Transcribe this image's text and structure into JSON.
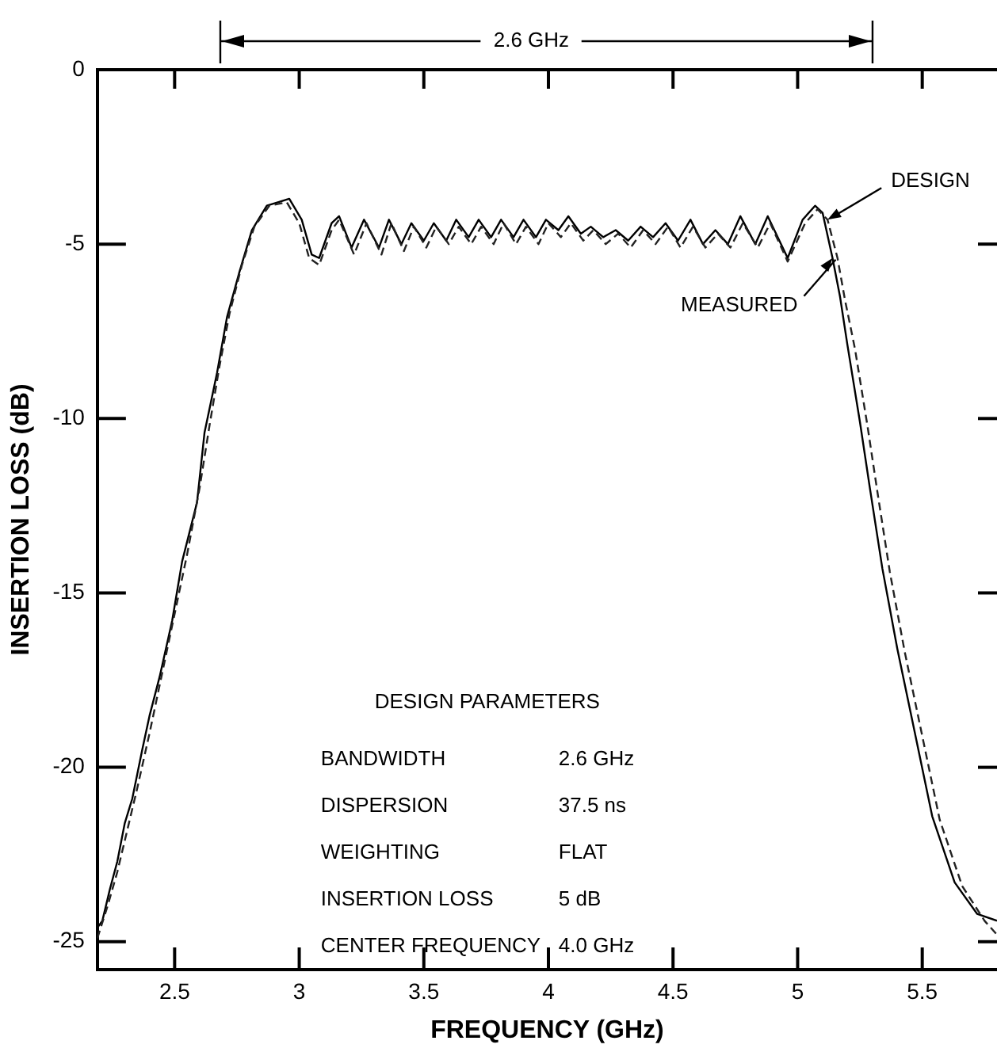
{
  "chart_data": {
    "type": "line",
    "xlabel": "FREQUENCY (GHz)",
    "ylabel": "INSERTION LOSS (dB)",
    "xlim": [
      2.19,
      5.8
    ],
    "xticks": [
      2.5,
      3.0,
      3.5,
      4.0,
      4.5,
      5.0,
      5.5
    ],
    "ylim": [
      -25.8,
      0
    ],
    "yticks": [
      0,
      -5,
      -10,
      -15,
      -20,
      -25
    ],
    "grid": false,
    "legend": false,
    "marker": "none",
    "annotations": [
      "2.6 GHz",
      "DESIGN PARAMETERS",
      "BANDWIDTH",
      "2.6 GHz",
      "DISPERSION",
      "37.5 ns",
      "WEIGHTING",
      "FLAT",
      "INSERTION LOSS",
      "5 dB",
      "CENTER FREQUENCY",
      "4.0 GHz"
    ],
    "series": [
      {
        "name": "DESIGN",
        "color": "#222222",
        "line_style": "dashed",
        "x": [
          2.19,
          2.23,
          2.27,
          2.31,
          2.35,
          2.4,
          2.45,
          2.5,
          2.55,
          2.6,
          2.64,
          2.68,
          2.72,
          2.77,
          2.82,
          2.88,
          2.95,
          3.0,
          3.04,
          3.08,
          3.13,
          3.16,
          3.22,
          3.27,
          3.33,
          3.37,
          3.42,
          3.46,
          3.51,
          3.55,
          3.6,
          3.64,
          3.69,
          3.73,
          3.78,
          3.82,
          3.87,
          3.91,
          3.96,
          4.0,
          4.05,
          4.09,
          4.14,
          4.18,
          4.23,
          4.28,
          4.33,
          4.38,
          4.43,
          4.48,
          4.53,
          4.58,
          4.63,
          4.68,
          4.73,
          4.78,
          4.84,
          4.89,
          4.96,
          5.03,
          5.08,
          5.12,
          5.16,
          5.19,
          5.23,
          5.28,
          5.32,
          5.37,
          5.43,
          5.5,
          5.57,
          5.66,
          5.75,
          5.8
        ],
        "values": [
          -24.9,
          -24.0,
          -23.0,
          -21.8,
          -20.6,
          -19.0,
          -17.3,
          -15.6,
          -13.9,
          -12.0,
          -10.2,
          -8.5,
          -7.0,
          -5.6,
          -4.5,
          -3.9,
          -3.8,
          -4.4,
          -5.4,
          -5.6,
          -4.6,
          -4.3,
          -5.3,
          -4.4,
          -5.3,
          -4.4,
          -5.2,
          -4.5,
          -5.1,
          -4.5,
          -5.0,
          -4.5,
          -5.0,
          -4.5,
          -5.0,
          -4.4,
          -5.0,
          -4.5,
          -5.0,
          -4.4,
          -4.8,
          -4.4,
          -4.9,
          -4.6,
          -5.0,
          -4.7,
          -5.1,
          -4.6,
          -5.0,
          -4.5,
          -5.1,
          -4.5,
          -5.1,
          -4.7,
          -5.1,
          -4.4,
          -5.1,
          -4.4,
          -5.5,
          -4.4,
          -4.0,
          -4.3,
          -5.4,
          -6.6,
          -8.0,
          -10.2,
          -12.1,
          -14.4,
          -16.7,
          -19.1,
          -21.5,
          -23.4,
          -24.4,
          -24.8
        ]
      },
      {
        "name": "MEASURED",
        "color": "#000000",
        "line_style": "solid",
        "x": [
          2.19,
          2.21,
          2.24,
          2.27,
          2.3,
          2.33,
          2.37,
          2.4,
          2.44,
          2.49,
          2.53,
          2.59,
          2.62,
          2.67,
          2.71,
          2.76,
          2.81,
          2.87,
          2.96,
          3.01,
          3.05,
          3.08,
          3.13,
          3.16,
          3.21,
          3.26,
          3.32,
          3.36,
          3.41,
          3.45,
          3.5,
          3.54,
          3.59,
          3.63,
          3.68,
          3.72,
          3.77,
          3.81,
          3.86,
          3.9,
          3.95,
          3.99,
          4.04,
          4.08,
          4.13,
          4.17,
          4.22,
          4.27,
          4.32,
          4.37,
          4.42,
          4.47,
          4.52,
          4.57,
          4.62,
          4.67,
          4.72,
          4.77,
          4.83,
          4.88,
          4.96,
          5.02,
          5.07,
          5.1,
          5.14,
          5.17,
          5.2,
          5.25,
          5.29,
          5.34,
          5.4,
          5.47,
          5.54,
          5.63,
          5.72,
          5.8
        ],
        "values": [
          -24.6,
          -24.4,
          -23.5,
          -22.7,
          -21.6,
          -20.9,
          -19.5,
          -18.5,
          -17.4,
          -15.8,
          -14.1,
          -12.4,
          -10.4,
          -8.7,
          -7.1,
          -5.8,
          -4.6,
          -3.9,
          -3.7,
          -4.3,
          -5.3,
          -5.4,
          -4.4,
          -4.2,
          -5.1,
          -4.3,
          -5.1,
          -4.3,
          -5.0,
          -4.4,
          -4.9,
          -4.4,
          -4.9,
          -4.3,
          -4.8,
          -4.3,
          -4.8,
          -4.3,
          -4.8,
          -4.3,
          -4.8,
          -4.3,
          -4.6,
          -4.2,
          -4.7,
          -4.5,
          -4.8,
          -4.6,
          -4.9,
          -4.5,
          -4.8,
          -4.4,
          -4.9,
          -4.3,
          -5.0,
          -4.6,
          -5.0,
          -4.2,
          -5.0,
          -4.2,
          -5.4,
          -4.3,
          -3.9,
          -4.1,
          -5.4,
          -6.5,
          -7.9,
          -10.1,
          -12.0,
          -14.3,
          -16.6,
          -19.0,
          -21.4,
          -23.3,
          -24.2,
          -24.4
        ]
      }
    ]
  }
}
